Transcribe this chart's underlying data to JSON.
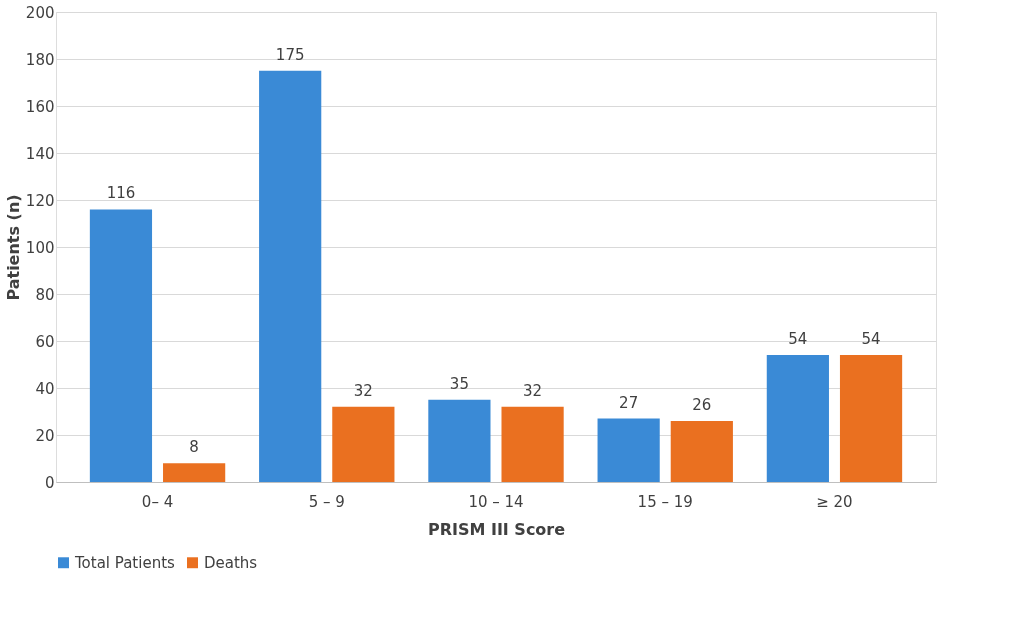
{
  "chart_data": {
    "type": "bar",
    "xlabel": "PRISM III Score",
    "ylabel": "Patients (n)",
    "categories": [
      "0– 4",
      "5 – 9",
      "10 – 14",
      "15 – 19",
      "≥ 20"
    ],
    "series": [
      {
        "name": "Total Patients",
        "color": "#3a8ad6",
        "values": [
          116,
          175,
          35,
          27,
          54
        ]
      },
      {
        "name": "Deaths",
        "color": "#ea7020",
        "values": [
          8,
          32,
          32,
          26,
          54
        ]
      }
    ],
    "ylim": [
      0,
      200
    ],
    "yticks": [
      0,
      20,
      40,
      60,
      80,
      100,
      120,
      140,
      160,
      180,
      200
    ],
    "grid": "y",
    "legend": "bottom",
    "data_labels": true
  }
}
